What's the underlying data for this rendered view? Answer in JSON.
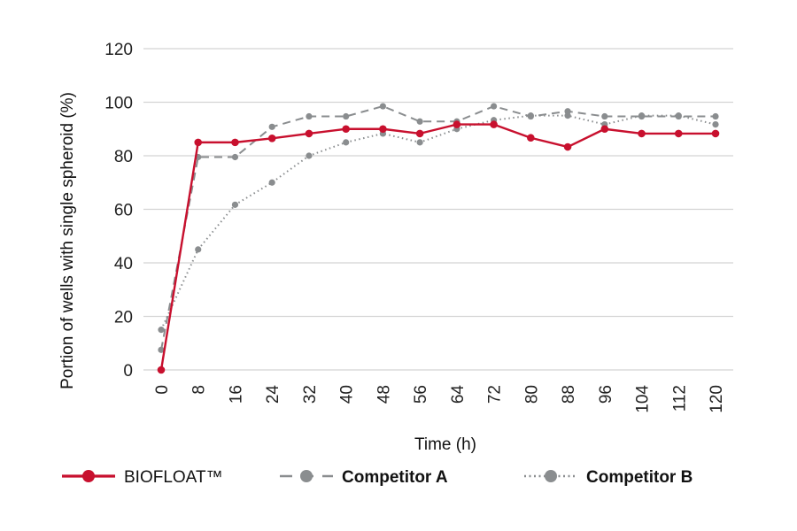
{
  "chart_data": {
    "type": "line",
    "xlabel": "Time (h)",
    "ylabel": "Portion of wells with single spheroid (%)",
    "x": [
      0,
      8,
      16,
      24,
      32,
      40,
      48,
      56,
      64,
      72,
      80,
      88,
      96,
      104,
      112,
      120
    ],
    "ylim": [
      0,
      120
    ],
    "yticks": [
      0,
      20,
      40,
      60,
      80,
      100,
      120
    ],
    "grid": "horizontal",
    "legend_position": "bottom",
    "series": [
      {
        "name": "BIOFLOAT™",
        "color": "#c8102e",
        "style": "solid",
        "values": [
          0,
          85,
          85,
          86.5,
          88.3,
          90,
          90,
          88.3,
          91.7,
          91.7,
          86.7,
          83.3,
          90,
          88.3,
          88.3,
          88.3
        ]
      },
      {
        "name": "Competitor A",
        "color": "#8a8d8f",
        "style": "dashed",
        "values": [
          7.5,
          79.5,
          79.5,
          90.8,
          94.7,
          94.7,
          98.5,
          92.8,
          92.8,
          98.5,
          94.7,
          96.6,
          94.7,
          94.7,
          94.7,
          94.7
        ]
      },
      {
        "name": "Competitor B",
        "color": "#8a8d8f",
        "style": "dotted",
        "values": [
          15,
          45,
          61.7,
          70,
          80,
          85,
          88.3,
          85,
          90,
          93.3,
          95,
          95,
          91.7,
          95,
          95,
          91.7
        ]
      }
    ]
  }
}
